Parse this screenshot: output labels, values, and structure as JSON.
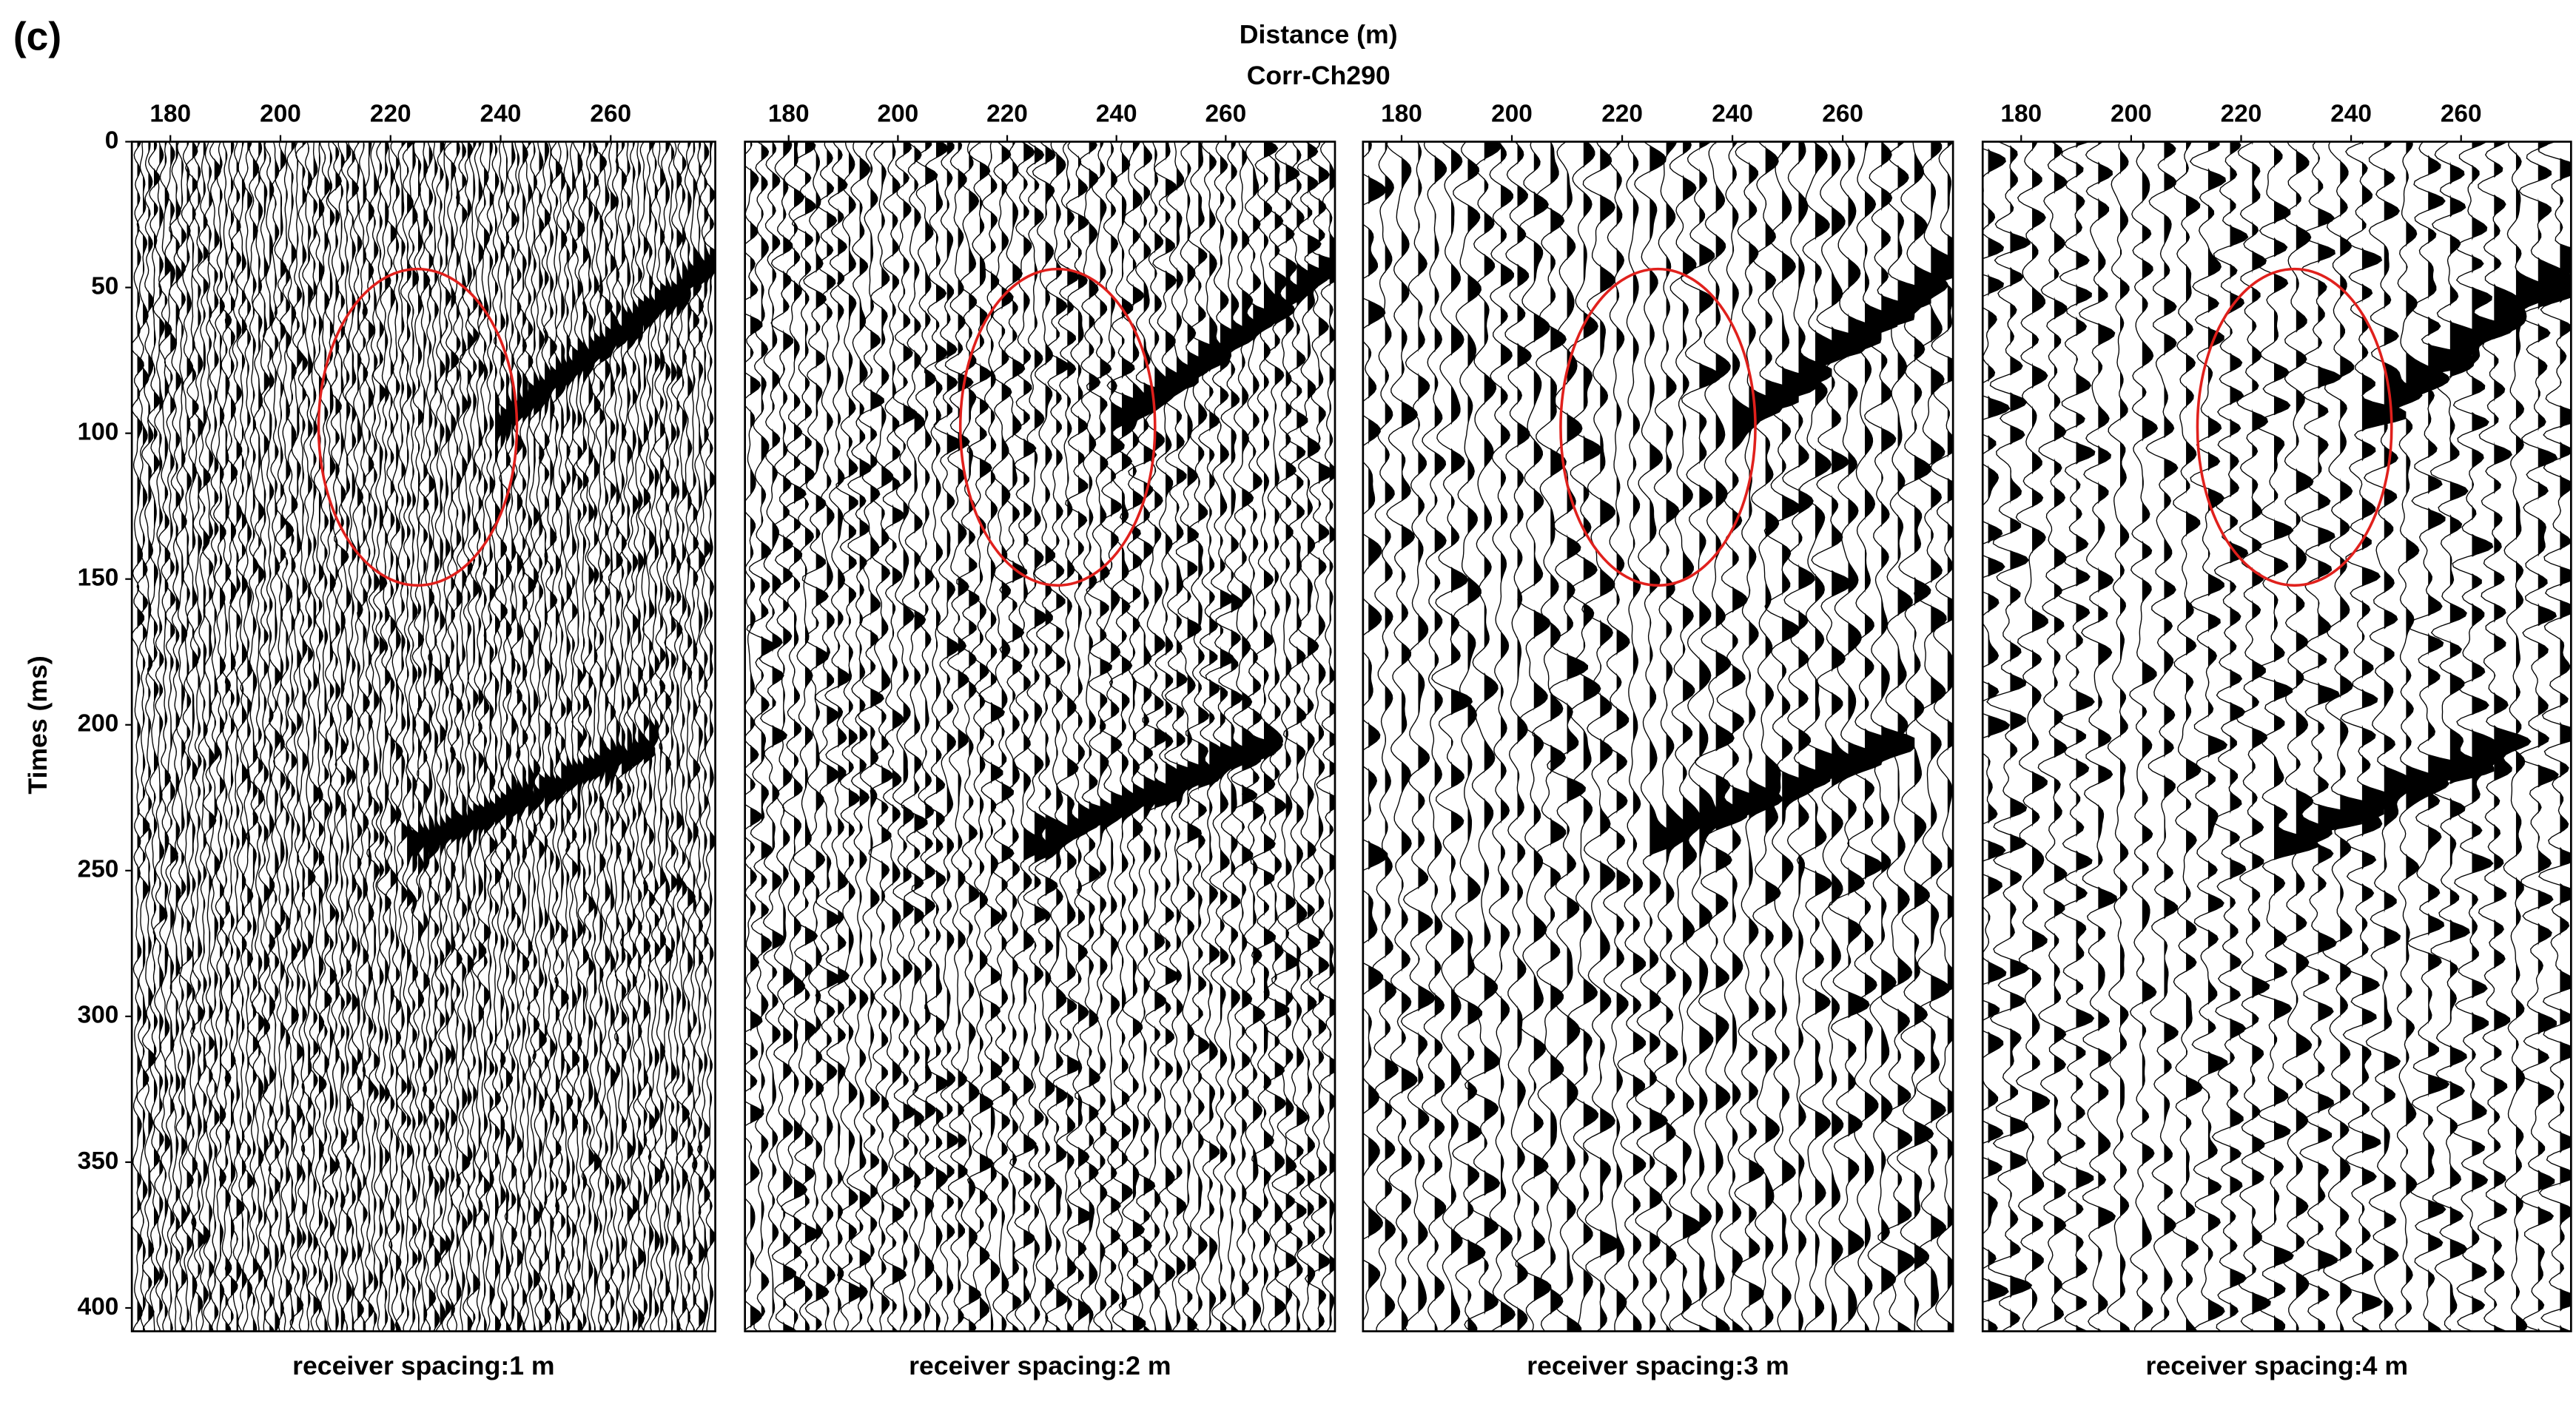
{
  "figure": {
    "label": "(c)",
    "xlabel": "Distance (m)",
    "title": "Corr-Ch290",
    "ylabel": "Times (ms)"
  },
  "chart_data": [
    {
      "type": "wiggle",
      "xlabel": "receiver spacing:1 m",
      "receiver_spacing": 1,
      "xlim": [
        173,
        279
      ],
      "xticks": [
        180,
        200,
        220,
        240,
        260
      ],
      "ylim": [
        0,
        408
      ],
      "yticks": [
        0,
        50,
        100,
        150,
        200,
        250,
        300,
        350,
        400
      ]
    },
    {
      "type": "wiggle",
      "xlabel": "receiver spacing:2 m",
      "receiver_spacing": 2,
      "xlim": [
        172,
        280
      ],
      "xticks": [
        180,
        200,
        220,
        240,
        260
      ],
      "ylim": [
        0,
        408
      ]
    },
    {
      "type": "wiggle",
      "xlabel": "receiver spacing:3 m",
      "receiver_spacing": 3,
      "xlim": [
        173,
        280
      ],
      "xticks": [
        180,
        200,
        220,
        240,
        260
      ],
      "ylim": [
        0,
        408
      ]
    },
    {
      "type": "wiggle",
      "xlabel": "receiver spacing:4 m",
      "receiver_spacing": 4,
      "xlim": [
        173,
        280
      ],
      "xticks": [
        180,
        200,
        220,
        240,
        260
      ],
      "ylim": [
        0,
        408
      ]
    }
  ]
}
